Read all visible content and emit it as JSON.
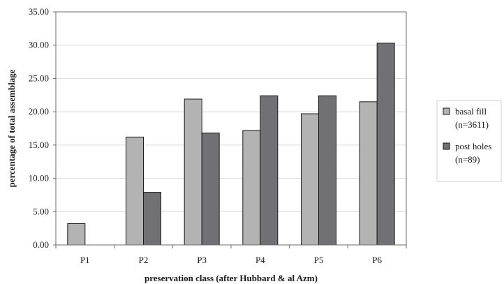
{
  "chart_data": {
    "type": "bar",
    "title": "",
    "xlabel": "preservation class (after Hubbard & al Azm)",
    "ylabel": "percentage of total assemblage",
    "categories": [
      "P1",
      "P2",
      "P3",
      "P4",
      "P5",
      "P6"
    ],
    "series": [
      {
        "name": "basal fill",
        "name_line2": "(n=3611)",
        "color": "#b3b3b3",
        "values": [
          3.2,
          16.2,
          21.9,
          17.2,
          19.7,
          21.5
        ]
      },
      {
        "name": "post holes",
        "name_line2": "(n=89)",
        "color": "#707075",
        "values": [
          0,
          7.9,
          16.8,
          22.4,
          22.4,
          30.3
        ]
      }
    ],
    "ylim": [
      0,
      35
    ],
    "yticks": [
      "0.00",
      "5.00",
      "10.00",
      "15.00",
      "20.00",
      "25.00",
      "30.00",
      "35.00"
    ],
    "grid": true,
    "legend_position": "right"
  }
}
